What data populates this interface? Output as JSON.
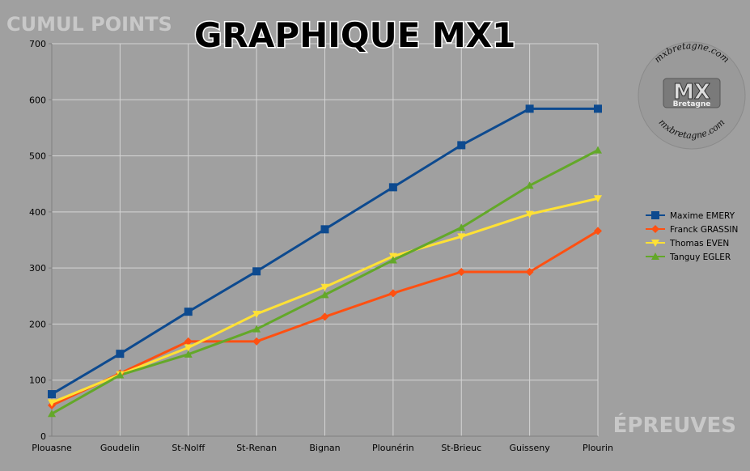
{
  "header": {
    "title": "GRAPHIQUE MX1",
    "ylabel": "CUMUL POINTS",
    "xlabel": "ÉPREUVES"
  },
  "watermark": {
    "text": "mxbretagne.com",
    "logo_top": "MX",
    "logo_bottom": "Bretagne"
  },
  "colors": {
    "background": "#a0a0a0",
    "grid": "#d4d4d4",
    "axis": "#808080"
  },
  "chart_data": {
    "type": "line",
    "title": "GRAPHIQUE MX1",
    "xlabel": "ÉPREUVES",
    "ylabel": "CUMUL POINTS",
    "ylim": [
      0,
      700
    ],
    "yticks": [
      0,
      100,
      200,
      300,
      400,
      500,
      600,
      700
    ],
    "grid": true,
    "legend": "right",
    "categories": [
      "Plouasne",
      "Goudelin",
      "St-Nolff",
      "St-Renan",
      "Bignan",
      "Plounérin",
      "St-Brieuc",
      "Guisseny",
      "Plourin"
    ],
    "series": [
      {
        "name": "Maxime EMERY",
        "color": "#0d4a8f",
        "marker": "square",
        "values": [
          75,
          147,
          222,
          294,
          369,
          444,
          519,
          584,
          584
        ]
      },
      {
        "name": "Franck GRASSIN",
        "color": "#ff5011",
        "marker": "diamond",
        "values": [
          55,
          112,
          169,
          169,
          213,
          255,
          293,
          293,
          366
        ]
      },
      {
        "name": "Thomas EVEN",
        "color": "#ffe135",
        "marker": "triangle-down",
        "values": [
          60,
          110,
          158,
          218,
          266,
          321,
          356,
          396,
          424
        ]
      },
      {
        "name": "Tanguy EGLER",
        "color": "#63a829",
        "marker": "triangle-up",
        "values": [
          40,
          109,
          146,
          191,
          252,
          314,
          372,
          447,
          510
        ]
      }
    ]
  }
}
